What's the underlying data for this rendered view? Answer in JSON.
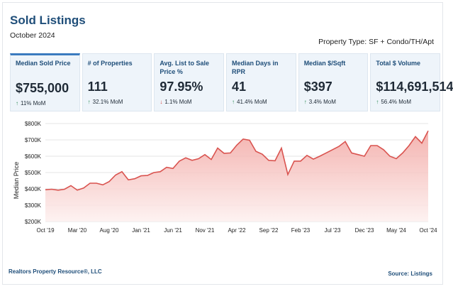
{
  "header": {
    "title": "Sold Listings",
    "subtitle": "October 2024",
    "property_type": "Property Type: SF + Condo/TH/Apt"
  },
  "kpis": [
    {
      "label": "Median Sold Price",
      "value": "$755,000",
      "change": "11% MoM",
      "direction": "up"
    },
    {
      "label": "# of Properties",
      "value": "111",
      "change": "32.1% MoM",
      "direction": "up"
    },
    {
      "label": "Avg. List to Sale Price %",
      "value": "97.95%",
      "change": "1.1% MoM",
      "direction": "down"
    },
    {
      "label": "Median Days in RPR",
      "value": "41",
      "change": "41.4% MoM",
      "direction": "up"
    },
    {
      "label": "Median $/Sqft",
      "value": "$397",
      "change": "3.4% MoM",
      "direction": "up"
    },
    {
      "label": "Total $ Volume",
      "value": "$114,691,514",
      "change": "56.4% MoM",
      "direction": "up"
    }
  ],
  "footer": {
    "left": "Realtors Property Resource®, LLC",
    "right": "Source: Listings"
  },
  "colors": {
    "line": "#d9534f",
    "fill_top": "#f2a6a2",
    "fill_bottom": "#fdf0ef",
    "accent": "#1f4e79",
    "up": "#2e8b57",
    "down": "#d64541"
  },
  "chart_data": {
    "type": "area",
    "ylabel": "Median Price",
    "xlabel": "",
    "ylim": [
      200000,
      800000
    ],
    "y_ticks": [
      200000,
      300000,
      400000,
      500000,
      600000,
      700000,
      800000
    ],
    "y_tick_labels": [
      "$200K",
      "$300K",
      "$400K",
      "$500K",
      "$600K",
      "$700K",
      "$800K"
    ],
    "x_ticks": [
      {
        "index": 0,
        "label": "Oct '19"
      },
      {
        "index": 5,
        "label": "Mar '20"
      },
      {
        "index": 10,
        "label": "Aug '20"
      },
      {
        "index": 15,
        "label": "Jan '21"
      },
      {
        "index": 20,
        "label": "Jun '21"
      },
      {
        "index": 25,
        "label": "Nov '21"
      },
      {
        "index": 30,
        "label": "Apr '22"
      },
      {
        "index": 35,
        "label": "Sep '22"
      },
      {
        "index": 40,
        "label": "Feb '23"
      },
      {
        "index": 45,
        "label": "Jul '23"
      },
      {
        "index": 50,
        "label": "Dec '23"
      },
      {
        "index": 55,
        "label": "May '24"
      },
      {
        "index": 60,
        "label": "Oct '24"
      }
    ],
    "grid": true,
    "series": [
      {
        "values": [
          395000,
          398000,
          392000,
          398000,
          420000,
          392000,
          405000,
          435000,
          435000,
          425000,
          445000,
          485000,
          505000,
          455000,
          462000,
          480000,
          482000,
          500000,
          505000,
          532000,
          525000,
          570000,
          590000,
          575000,
          585000,
          610000,
          580000,
          650000,
          618000,
          620000,
          668000,
          705000,
          698000,
          630000,
          612000,
          575000,
          572000,
          650000,
          488000,
          570000,
          570000,
          605000,
          582000,
          600000,
          620000,
          640000,
          660000,
          690000,
          620000,
          610000,
          600000,
          665000,
          665000,
          640000,
          600000,
          585000,
          620000,
          665000,
          720000,
          680000,
          755000
        ]
      }
    ]
  }
}
